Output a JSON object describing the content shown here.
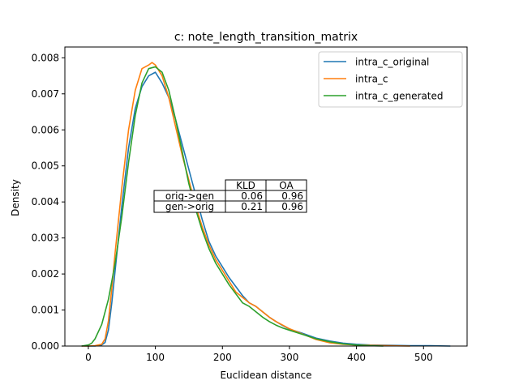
{
  "chart_data": {
    "type": "line",
    "title": "c: note_length_transition_matrix",
    "xlabel": "Euclidean distance",
    "ylabel": "Density",
    "xlim": [
      -35,
      565
    ],
    "ylim": [
      0,
      0.0083
    ],
    "xticks": [
      0,
      100,
      200,
      300,
      400,
      500
    ],
    "xtick_labels": [
      "0",
      "100",
      "200",
      "300",
      "400",
      "500"
    ],
    "yticks": [
      0,
      0.001,
      0.002,
      0.003,
      0.004,
      0.005,
      0.006,
      0.007,
      0.008
    ],
    "ytick_labels": [
      "0.000",
      "0.001",
      "0.002",
      "0.003",
      "0.004",
      "0.005",
      "0.006",
      "0.007",
      "0.008"
    ],
    "grid": false,
    "legend_position": "upper right",
    "series": [
      {
        "name": "intra_c_original",
        "color": "#1f77b4",
        "x": [
          -10,
          0,
          10,
          20,
          25,
          30,
          35,
          40,
          50,
          60,
          70,
          80,
          90,
          100,
          110,
          120,
          130,
          140,
          150,
          160,
          170,
          180,
          190,
          200,
          210,
          220,
          230,
          240,
          250,
          260,
          270,
          280,
          290,
          300,
          320,
          340,
          360,
          380,
          400,
          420,
          450,
          480,
          510,
          540
        ],
        "y": [
          0,
          0,
          0,
          3e-05,
          0.0001,
          0.00045,
          0.0012,
          0.0021,
          0.0039,
          0.0055,
          0.0066,
          0.0072,
          0.0075,
          0.0076,
          0.0073,
          0.0069,
          0.0063,
          0.0056,
          0.0049,
          0.0042,
          0.0035,
          0.0029,
          0.0025,
          0.0022,
          0.0019,
          0.00165,
          0.0014,
          0.0012,
          0.0011,
          0.00095,
          0.0008,
          0.00068,
          0.00057,
          0.00047,
          0.00035,
          0.00022,
          0.00014,
          8e-05,
          5e-05,
          3e-05,
          2e-05,
          1e-05,
          1e-05,
          0
        ]
      },
      {
        "name": "intra_c",
        "color": "#ff7f0e",
        "x": [
          -10,
          0,
          10,
          20,
          25,
          30,
          35,
          40,
          50,
          60,
          70,
          80,
          90,
          95,
          100,
          110,
          120,
          130,
          140,
          150,
          160,
          170,
          180,
          190,
          200,
          210,
          220,
          230,
          240,
          250,
          260,
          270,
          280,
          290,
          300,
          320,
          340,
          360,
          380,
          400,
          420,
          450,
          480
        ],
        "y": [
          0,
          0,
          1e-05,
          5e-05,
          0.0002,
          0.0007,
          0.0016,
          0.0026,
          0.0044,
          0.006,
          0.0071,
          0.0077,
          0.0078,
          0.00787,
          0.0078,
          0.0075,
          0.0069,
          0.0061,
          0.0053,
          0.0046,
          0.0039,
          0.0033,
          0.0028,
          0.0024,
          0.0021,
          0.0018,
          0.0015,
          0.00135,
          0.0012,
          0.0011,
          0.00095,
          0.0008,
          0.00068,
          0.00058,
          0.00048,
          0.00033,
          0.00018,
          9e-05,
          5e-05,
          3e-05,
          2e-05,
          1e-05,
          0
        ]
      },
      {
        "name": "intra_c_generated",
        "color": "#2ca02c",
        "x": [
          -10,
          0,
          5,
          10,
          20,
          30,
          40,
          50,
          60,
          70,
          80,
          90,
          100,
          110,
          120,
          130,
          140,
          150,
          160,
          170,
          180,
          190,
          200,
          210,
          220,
          230,
          240,
          250,
          260,
          270,
          280,
          290,
          300,
          320,
          340,
          360,
          380,
          400,
          420,
          440
        ],
        "y": [
          0,
          3e-05,
          8e-05,
          0.0002,
          0.0006,
          0.0013,
          0.0023,
          0.0036,
          0.0051,
          0.0064,
          0.0073,
          0.0077,
          0.00775,
          0.0076,
          0.0071,
          0.0063,
          0.0054,
          0.0045,
          0.0038,
          0.0032,
          0.0027,
          0.0023,
          0.002,
          0.0017,
          0.00145,
          0.0012,
          0.0011,
          0.00095,
          0.0008,
          0.00068,
          0.00058,
          0.0005,
          0.00044,
          0.00032,
          0.0002,
          0.00012,
          6e-05,
          3e-05,
          1e-05,
          0
        ]
      }
    ],
    "table": {
      "col_headers": [
        "KLD",
        "OA"
      ],
      "rows": [
        {
          "label": "orig->gen",
          "values": [
            "0.06",
            "0.96"
          ]
        },
        {
          "label": "gen->orig",
          "values": [
            "0.21",
            "0.96"
          ]
        }
      ]
    }
  }
}
